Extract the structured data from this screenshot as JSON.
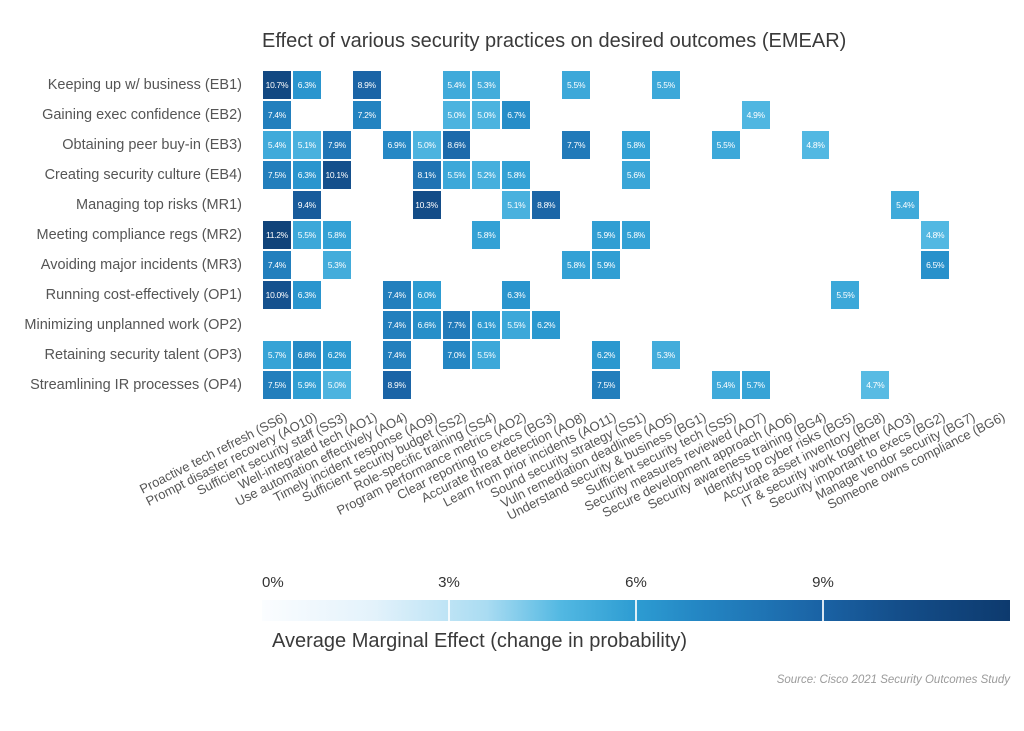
{
  "title": "Effect of various security practices on desired outcomes (EMEAR)",
  "source_note": "Source: Cisco 2021 Security Outcomes Study",
  "legend": {
    "label": "Average Marginal Effect (change in probability)",
    "ticks": [
      {
        "label": "0%",
        "value": 0
      },
      {
        "label": "3%",
        "value": 3
      },
      {
        "label": "6%",
        "value": 6
      },
      {
        "label": "9%",
        "value": 9
      }
    ],
    "domain": [
      0,
      12
    ],
    "gradient_stops": [
      [
        0.0,
        "#fbfdff"
      ],
      [
        0.15,
        "#e3f2fb"
      ],
      [
        0.3,
        "#aadcf2"
      ],
      [
        0.4,
        "#52b8e2"
      ],
      [
        0.5,
        "#2d9cd2"
      ],
      [
        0.58,
        "#2487c4"
      ],
      [
        0.67,
        "#1f74b4"
      ],
      [
        0.75,
        "#1a62a4"
      ],
      [
        0.85,
        "#144e8a"
      ],
      [
        1.0,
        "#0d3a6e"
      ]
    ]
  },
  "chart_data": {
    "type": "heatmap",
    "title": "Effect of various security practices on desired outcomes (EMEAR)",
    "value_unit": "percent (average marginal effect, change in probability)",
    "rows": [
      "Keeping up w/ business (EB1)",
      "Gaining exec confidence (EB2)",
      "Obtaining peer buy-in (EB3)",
      "Creating security culture (EB4)",
      "Managing top risks (MR1)",
      "Meeting compliance regs (MR2)",
      "Avoiding major incidents (MR3)",
      "Running cost-effectively (OP1)",
      "Minimizing unplanned work (OP2)",
      "Retaining security talent (OP3)",
      "Streamlining IR processes (OP4)"
    ],
    "columns": [
      "Proactive tech refresh (SS6)",
      "Prompt disaster recovery (AO10)",
      "Sufficient security staff (SS3)",
      "Well-integrated tech (AO1)",
      "Use automation effectively (AO4)",
      "Timely incident response (AO9)",
      "Sufficient security budget (SS2)",
      "Role-specific training (SS4)",
      "Program performance metrics (AO2)",
      "Clear reporting to execs (BG3)",
      "Accurate threat detection (AO8)",
      "Learn from prior incidents (AO11)",
      "Sound security strategy (SS1)",
      "Vuln remediation deadlines (AO5)",
      "Understand security & business (BG1)",
      "Sufficient security tech (SS5)",
      "Security measures reviewed (AO7)",
      "Secure development approach (AO6)",
      "Security awareness training (BG4)",
      "Identify top cyber risks (BG5)",
      "Accurate asset inventory (BG8)",
      "IT & security work together (AO3)",
      "Security important to execs (BG2)",
      "Manage vendor security (BG7)",
      "Someone owns compliance (BG6)"
    ],
    "cell_format": [
      "row_index",
      "col_index",
      "value_percent"
    ],
    "cells": [
      [
        0,
        0,
        10.7
      ],
      [
        0,
        1,
        6.3
      ],
      [
        0,
        3,
        8.9
      ],
      [
        0,
        6,
        5.4
      ],
      [
        0,
        7,
        5.3
      ],
      [
        0,
        10,
        5.5
      ],
      [
        0,
        13,
        5.5
      ],
      [
        1,
        0,
        7.4
      ],
      [
        1,
        3,
        7.2
      ],
      [
        1,
        6,
        5.0
      ],
      [
        1,
        7,
        5.0
      ],
      [
        1,
        8,
        6.7
      ],
      [
        1,
        16,
        4.9
      ],
      [
        2,
        0,
        5.4
      ],
      [
        2,
        1,
        5.1
      ],
      [
        2,
        2,
        7.9
      ],
      [
        2,
        4,
        6.9
      ],
      [
        2,
        5,
        5.0
      ],
      [
        2,
        6,
        8.6
      ],
      [
        2,
        10,
        7.7
      ],
      [
        2,
        12,
        5.8
      ],
      [
        2,
        15,
        5.5
      ],
      [
        2,
        18,
        4.8
      ],
      [
        3,
        0,
        7.5
      ],
      [
        3,
        1,
        6.3
      ],
      [
        3,
        2,
        10.1
      ],
      [
        3,
        5,
        8.1
      ],
      [
        3,
        6,
        5.5
      ],
      [
        3,
        7,
        5.2
      ],
      [
        3,
        8,
        5.8
      ],
      [
        3,
        12,
        5.6
      ],
      [
        4,
        1,
        9.4
      ],
      [
        4,
        5,
        10.3
      ],
      [
        4,
        8,
        5.1
      ],
      [
        4,
        9,
        8.8
      ],
      [
        4,
        21,
        5.4
      ],
      [
        5,
        0,
        11.2
      ],
      [
        5,
        1,
        5.5
      ],
      [
        5,
        2,
        5.8
      ],
      [
        5,
        7,
        5.8
      ],
      [
        5,
        11,
        5.9
      ],
      [
        5,
        12,
        5.8
      ],
      [
        5,
        22,
        4.8
      ],
      [
        6,
        0,
        7.4
      ],
      [
        6,
        2,
        5.3
      ],
      [
        6,
        10,
        5.8
      ],
      [
        6,
        11,
        5.9
      ],
      [
        6,
        22,
        6.5
      ],
      [
        7,
        0,
        10.0
      ],
      [
        7,
        1,
        6.3
      ],
      [
        7,
        4,
        7.4
      ],
      [
        7,
        5,
        6.0
      ],
      [
        7,
        8,
        6.3
      ],
      [
        7,
        19,
        5.5
      ],
      [
        8,
        4,
        7.4
      ],
      [
        8,
        5,
        6.6
      ],
      [
        8,
        6,
        7.7
      ],
      [
        8,
        7,
        6.1
      ],
      [
        8,
        8,
        5.5
      ],
      [
        8,
        9,
        6.2
      ],
      [
        9,
        0,
        5.7
      ],
      [
        9,
        1,
        6.8
      ],
      [
        9,
        2,
        6.2
      ],
      [
        9,
        4,
        7.4
      ],
      [
        9,
        6,
        7.0
      ],
      [
        9,
        7,
        5.5
      ],
      [
        9,
        11,
        6.2
      ],
      [
        9,
        13,
        5.3
      ],
      [
        10,
        0,
        7.5
      ],
      [
        10,
        1,
        5.9
      ],
      [
        10,
        2,
        5.0
      ],
      [
        10,
        4,
        8.9
      ],
      [
        10,
        11,
        7.5
      ],
      [
        10,
        15,
        5.4
      ],
      [
        10,
        16,
        5.7
      ],
      [
        10,
        20,
        4.7
      ]
    ]
  }
}
